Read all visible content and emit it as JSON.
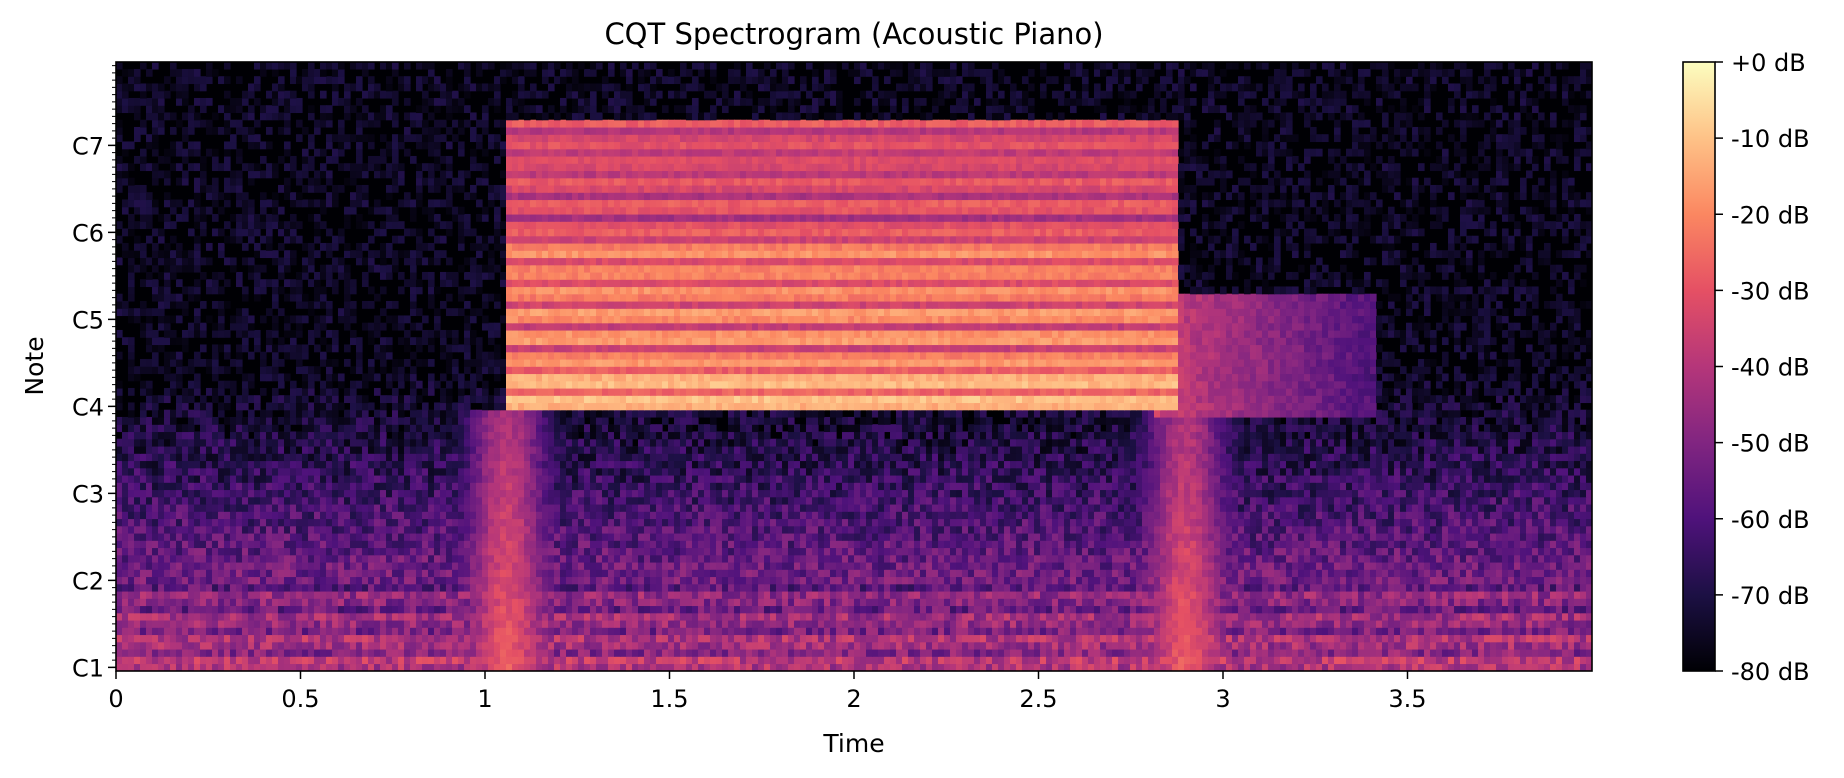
{
  "chart_data": {
    "type": "heatmap",
    "title": "CQT Spectrogram (Acoustic Piano)",
    "xlabel": "Time",
    "ylabel": "Note",
    "xlim": [
      0,
      4.0
    ],
    "x_ticks": [
      0,
      0.5,
      1,
      1.5,
      2,
      2.5,
      3,
      3.5
    ],
    "x_tick_labels": [
      "0",
      "0.5",
      "1",
      "1.5",
      "2",
      "2.5",
      "3",
      "3.5"
    ],
    "y_scale": "log (note / octave)",
    "y_ticks": [
      "C1",
      "C2",
      "C3",
      "C4",
      "C5",
      "C6",
      "C7"
    ],
    "y_range_notes": [
      "C1",
      "B7"
    ],
    "colormap": "magma",
    "color_range_db": [
      -80,
      0
    ],
    "colorbar_ticks": [
      0,
      -10,
      -20,
      -30,
      -40,
      -50,
      -60,
      -70,
      -80
    ],
    "colorbar_tick_labels": [
      "+0 dB",
      "-10 dB",
      "-20 dB",
      "-30 dB",
      "-40 dB",
      "-50 dB",
      "-60 dB",
      "-70 dB",
      "-80 dB"
    ],
    "note_on_s": 1.06,
    "note_off_s": 2.82,
    "sustained_band_notes": [
      "C4",
      "C7"
    ],
    "brightest_band_note": "C#4–E4",
    "grid": false,
    "colors": {
      "magma": [
        "#000004",
        "#1c1044",
        "#4f127b",
        "#812581",
        "#b5367a",
        "#e55064",
        "#fb8761",
        "#fec287",
        "#fcfdbf"
      ]
    }
  }
}
